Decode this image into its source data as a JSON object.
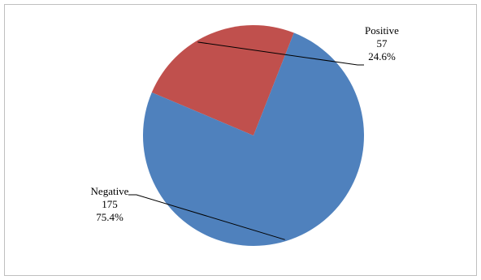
{
  "chart_data": {
    "type": "pie",
    "title": "",
    "slices": [
      {
        "label": "Positive",
        "value": 57,
        "percent": "24.6%",
        "color": "#c0504d"
      },
      {
        "label": "Negative",
        "value": 175,
        "percent": "75.4%",
        "color": "#4f81bd"
      }
    ],
    "legend": "none"
  }
}
